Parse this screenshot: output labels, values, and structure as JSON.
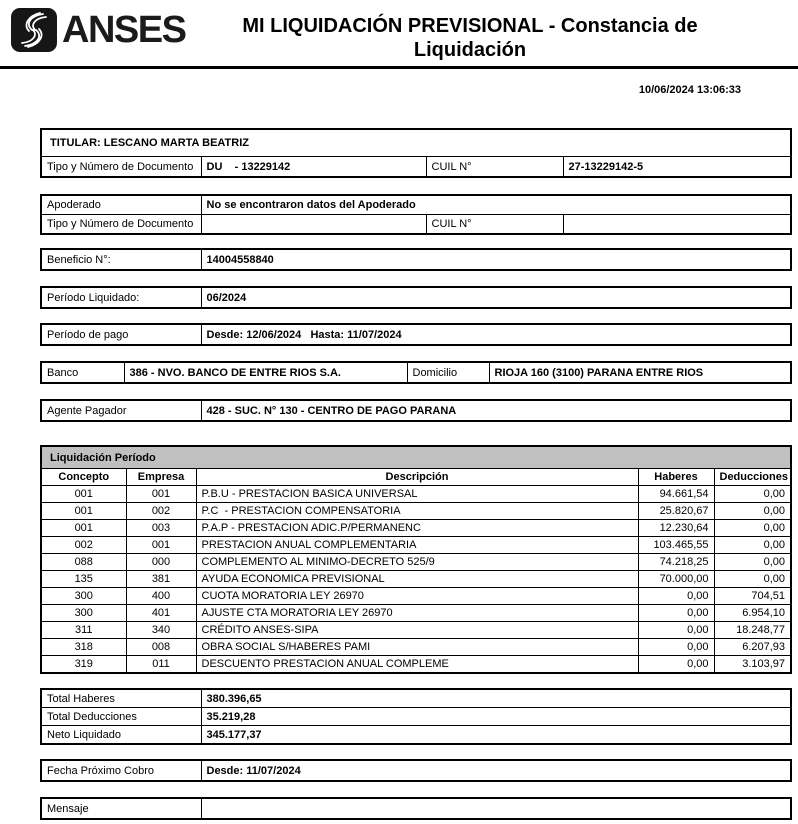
{
  "colors": {
    "section_header_gray": "#c0c0c0"
  },
  "header": {
    "logo_text": "ANSES",
    "title_line1": "MI LIQUIDACIÓN PREVISIONAL - Constancia de",
    "title_line2": "Liquidación",
    "timestamp": "10/06/2024 13:06:33"
  },
  "titular": {
    "header": "TITULAR: LESCANO MARTA BEATRIZ",
    "doc_label": "Tipo y Número de Documento",
    "doc_value": "DU    - 13229142",
    "cuil_label": "CUIL N°",
    "cuil_value": "27-13229142-5"
  },
  "apoderado": {
    "label": "Apoderado",
    "value": "No se encontraron datos del Apoderado",
    "doc_label": "Tipo y Número de Documento",
    "doc_value": "",
    "cuil_label": "CUIL N°",
    "cuil_value": ""
  },
  "beneficio": {
    "label": "Beneficio N°:",
    "value": "14004558840"
  },
  "periodo_liquidado": {
    "label": "Período Liquidado:",
    "value": "06/2024"
  },
  "periodo_pago": {
    "label": "Período de pago",
    "value": "Desde: 12/06/2024   Hasta: 11/07/2024"
  },
  "banco": {
    "label": "Banco",
    "value": "386 - NVO. BANCO DE ENTRE RIOS S.A.",
    "domicilio_label": "Domicilio",
    "domicilio_value": "RIOJA 160 (3100) PARANA ENTRE RIOS"
  },
  "agente": {
    "label": "Agente Pagador",
    "value": "428 - SUC. N° 130 - CENTRO DE PAGO PARANA"
  },
  "liquidacion": {
    "title": "Liquidación Período",
    "columns": [
      "Concepto",
      "Empresa",
      "Descripción",
      "Haberes",
      "Deducciones"
    ],
    "rows": [
      [
        "001",
        "001",
        "P.B.U - PRESTACION BASICA UNIVERSAL",
        "94.661,54",
        "0,00"
      ],
      [
        "001",
        "002",
        "P.C  - PRESTACION COMPENSATORIA",
        "25.820,67",
        "0,00"
      ],
      [
        "001",
        "003",
        "P.A.P - PRESTACION ADIC.P/PERMANENC",
        "12.230,64",
        "0,00"
      ],
      [
        "002",
        "001",
        "PRESTACION ANUAL COMPLEMENTARIA",
        "103.465,55",
        "0,00"
      ],
      [
        "088",
        "000",
        "COMPLEMENTO AL MINIMO-DECRETO 525/9",
        "74.218,25",
        "0,00"
      ],
      [
        "135",
        "381",
        "AYUDA ECONOMICA PREVISIONAL",
        "70.000,00",
        "0,00"
      ],
      [
        "300",
        "400",
        "CUOTA MORATORIA LEY 26970",
        "0,00",
        "704,51"
      ],
      [
        "300",
        "401",
        "AJUSTE CTA MORATORIA LEY 26970",
        "0,00",
        "6.954,10"
      ],
      [
        "311",
        "340",
        "CRÉDITO ANSES-SIPA",
        "0,00",
        "18.248,77"
      ],
      [
        "318",
        "008",
        "OBRA SOCIAL S/HABERES PAMI",
        "0,00",
        "6.207,93"
      ],
      [
        "319",
        "011",
        "DESCUENTO PRESTACION ANUAL COMPLEME",
        "0,00",
        "3.103,97"
      ]
    ]
  },
  "totales": {
    "rows": [
      {
        "label": "Total Haberes",
        "value": "380.396,65"
      },
      {
        "label": "Total Deducciones",
        "value": "35.219,28"
      },
      {
        "label": "Neto Liquidado",
        "value": "345.177,37"
      }
    ]
  },
  "proximo_cobro": {
    "label": "Fecha Próximo Cobro",
    "value": "Desde: 11/07/2024"
  },
  "mensaje": {
    "label": "Mensaje",
    "value": ""
  }
}
